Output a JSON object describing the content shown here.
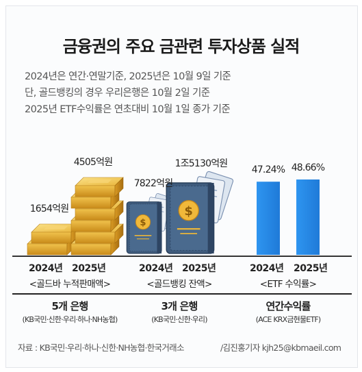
{
  "title": "금융권의 주요 금관련 투자상품 실적",
  "notes": [
    "2024년은 연간·연말기준, 2025년은 10월 9일 기준",
    "단, 골드뱅킹의 경우 우리은행은 10월 2일 기준",
    "2025년 ETF수익률은 연초대비 10월 1일 종가 기준"
  ],
  "chart_data": [
    {
      "type": "bar",
      "name": "골드바 누적판매액",
      "categories": [
        "2024년",
        "2025년"
      ],
      "values": [
        1654,
        4505
      ],
      "unit": "억원",
      "value_labels": [
        "1654억원",
        "4505억원"
      ],
      "group_label": "<골드바 누적판매액>",
      "count_label": "5개 은행",
      "sub_label": "(KB국민·신한·우리·하나·NH농협)",
      "color": "#e8b33a"
    },
    {
      "type": "bar",
      "name": "골드뱅킹 잔액",
      "categories": [
        "2024년",
        "2025년"
      ],
      "values": [
        7822,
        15130
      ],
      "unit": "억원",
      "value_labels": [
        "7822억원",
        "1조5130억원"
      ],
      "group_label": "<골드뱅킹 잔액>",
      "count_label": "3개 은행",
      "sub_label": "(KB국민·신한·우리)",
      "color": "#3d5a80"
    },
    {
      "type": "bar",
      "name": "ETF 수익률",
      "categories": [
        "2024년",
        "2025년"
      ],
      "values": [
        47.24,
        48.66
      ],
      "unit": "%",
      "value_labels": [
        "47.24%",
        "48.66%"
      ],
      "group_label": "<ETF 수익률>",
      "count_label": "연간수익률",
      "sub_label": "(ACE KRX금현물ETF)",
      "color": "#2a8ae8"
    }
  ],
  "source": "자료 : KB국민·우리·하나·신한·NH농협·한국거래소",
  "credit": "/김진홍기자 kjh25@kbmaeil.com",
  "icons": [
    "gold-bar-icon",
    "bankbook-icon"
  ]
}
